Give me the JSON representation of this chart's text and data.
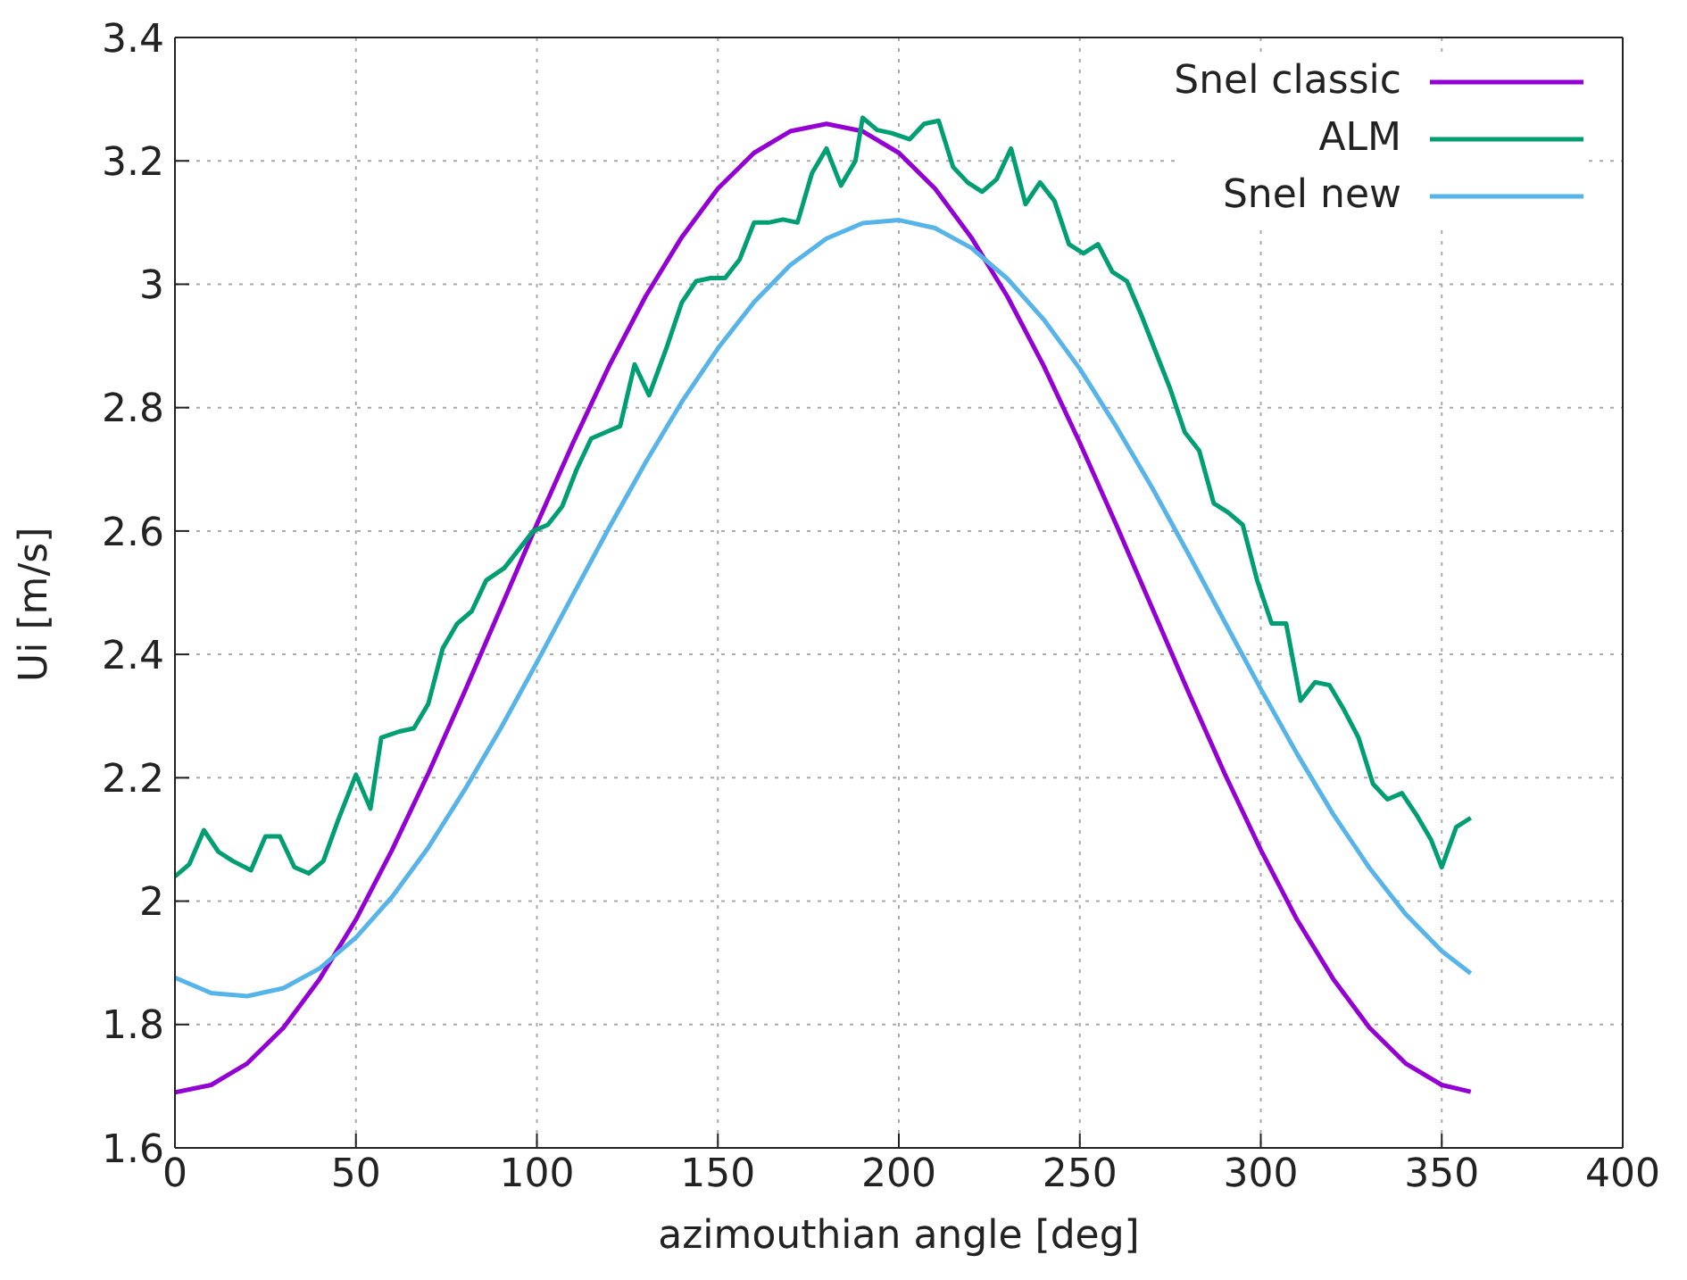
{
  "chart_data": {
    "type": "line",
    "xlabel": "azimouthian angle [deg]",
    "ylabel": "Ui [m/s]",
    "xlim": [
      0,
      400
    ],
    "xticks": [
      0,
      50,
      100,
      150,
      200,
      250,
      300,
      350,
      400
    ],
    "ylim": [
      1.6,
      3.4
    ],
    "yticks": [
      1.6,
      1.8,
      2,
      2.2,
      2.4,
      2.6,
      2.8,
      3,
      3.2,
      3.4
    ],
    "grid": true,
    "legend": "top right",
    "marker": "none",
    "line_style": "solid",
    "series": [
      {
        "name": "Snel classic",
        "color": "#9400d3",
        "x": [
          0,
          10,
          20,
          30,
          40,
          50,
          60,
          70,
          80,
          90,
          100,
          110,
          120,
          130,
          140,
          150,
          160,
          170,
          180,
          190,
          200,
          210,
          220,
          230,
          240,
          250,
          260,
          270,
          280,
          290,
          300,
          310,
          320,
          330,
          340,
          350,
          358
        ],
        "values": [
          1.69,
          1.702,
          1.737,
          1.795,
          1.874,
          1.97,
          2.083,
          2.207,
          2.339,
          2.475,
          2.611,
          2.743,
          2.868,
          2.98,
          3.076,
          3.155,
          3.213,
          3.248,
          3.26,
          3.248,
          3.213,
          3.155,
          3.076,
          2.98,
          2.868,
          2.743,
          2.611,
          2.475,
          2.339,
          2.207,
          2.083,
          1.97,
          1.874,
          1.795,
          1.737,
          1.702,
          1.691
        ]
      },
      {
        "name": "ALM",
        "color": "#009e73",
        "x": [
          0,
          4,
          8,
          12,
          16,
          21,
          25,
          29,
          33,
          37,
          41,
          45,
          50,
          54,
          57,
          62,
          66,
          70,
          74,
          78,
          82,
          86,
          91,
          95,
          99,
          103,
          107,
          111,
          115,
          119,
          123,
          127,
          131,
          136,
          140,
          144,
          148,
          152,
          156,
          160,
          164,
          168,
          172,
          176,
          180,
          184,
          188,
          190,
          194,
          198,
          203,
          207,
          211,
          215,
          219,
          223,
          227,
          231,
          235,
          239,
          243,
          247,
          251,
          255,
          259,
          263,
          267,
          271,
          275,
          279,
          283,
          287,
          291,
          295,
          299,
          303,
          307,
          311,
          315,
          319,
          323,
          327,
          331,
          335,
          339,
          343,
          347,
          350,
          354,
          358
        ],
        "values": [
          2.04,
          2.06,
          2.115,
          2.08,
          2.065,
          2.05,
          2.105,
          2.105,
          2.055,
          2.045,
          2.065,
          2.13,
          2.205,
          2.15,
          2.265,
          2.275,
          2.28,
          2.32,
          2.41,
          2.45,
          2.47,
          2.52,
          2.54,
          2.57,
          2.6,
          2.61,
          2.64,
          2.7,
          2.75,
          2.76,
          2.77,
          2.87,
          2.82,
          2.9,
          2.97,
          3.005,
          3.01,
          3.01,
          3.04,
          3.1,
          3.1,
          3.105,
          3.1,
          3.18,
          3.22,
          3.16,
          3.2,
          3.27,
          3.25,
          3.245,
          3.235,
          3.26,
          3.265,
          3.19,
          3.165,
          3.15,
          3.17,
          3.22,
          3.13,
          3.165,
          3.135,
          3.065,
          3.05,
          3.065,
          3.02,
          3.005,
          2.95,
          2.89,
          2.83,
          2.76,
          2.73,
          2.645,
          2.63,
          2.61,
          2.52,
          2.45,
          2.45,
          2.325,
          2.355,
          2.35,
          2.31,
          2.265,
          2.19,
          2.165,
          2.175,
          2.14,
          2.1,
          2.055,
          2.12,
          2.135
        ]
      },
      {
        "name": "Snel new",
        "color": "#56b4e9",
        "x": [
          0,
          10,
          20,
          30,
          40,
          50,
          60,
          70,
          80,
          90,
          100,
          110,
          120,
          130,
          140,
          150,
          160,
          170,
          180,
          190,
          200,
          210,
          220,
          230,
          240,
          250,
          260,
          270,
          280,
          290,
          300,
          310,
          320,
          330,
          340,
          350,
          358
        ],
        "values": [
          1.876,
          1.851,
          1.846,
          1.859,
          1.891,
          1.941,
          2.007,
          2.087,
          2.18,
          2.28,
          2.387,
          2.497,
          2.606,
          2.711,
          2.809,
          2.896,
          2.971,
          3.031,
          3.074,
          3.099,
          3.104,
          3.091,
          3.059,
          3.009,
          2.943,
          2.863,
          2.77,
          2.67,
          2.563,
          2.453,
          2.344,
          2.239,
          2.141,
          2.054,
          1.979,
          1.919,
          1.883
        ]
      }
    ]
  }
}
